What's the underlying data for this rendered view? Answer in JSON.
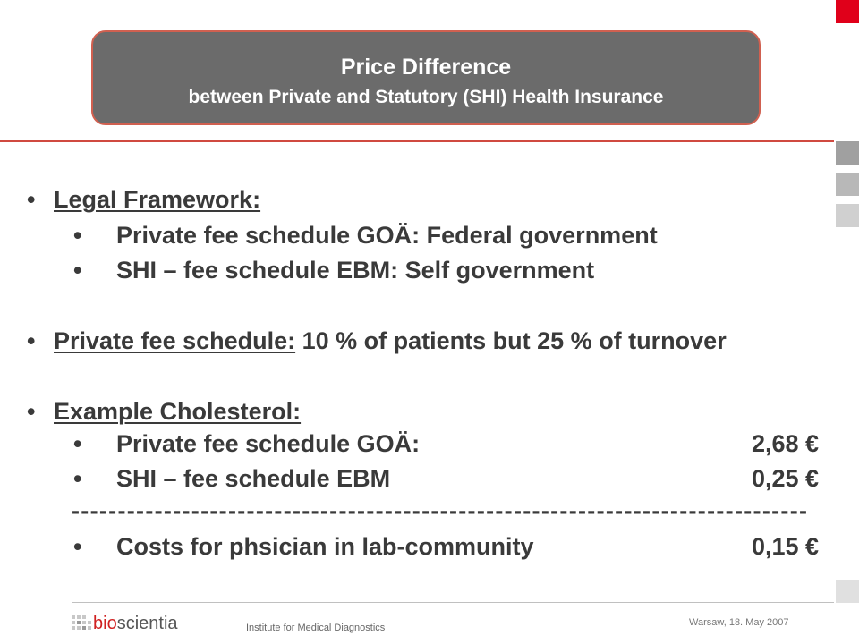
{
  "header": {
    "title": "Price Difference",
    "subtitle": "between Private and Statutory (SHI) Health Insurance"
  },
  "content": {
    "legal_heading": "Legal Framework:",
    "legal_items": [
      "Private fee schedule GOÄ: Federal government",
      "SHI – fee schedule EBM: Self government"
    ],
    "private_heading": "Private fee schedule:",
    "private_text": " 10 % of patients but 25 % of turnover",
    "example_heading": "Example Cholesterol:",
    "example_items": [
      {
        "label": "Private fee schedule GOÄ:",
        "amount": "2,68 €"
      },
      {
        "label": "SHI – fee schedule EBM",
        "amount": "0,25 €"
      }
    ],
    "separator": "--------------------------------------------------------------------------------",
    "cost_item": {
      "label": "Costs for phsician in lab-community",
      "amount": "0,15 €"
    },
    "bullet": "•"
  },
  "footer": {
    "logo_prefix": "bio",
    "logo_suffix": "scientia",
    "institute": "Institute for Medical Diagnostics",
    "date": "Warsaw, 18. May 2007"
  },
  "colors": {
    "accent_red": "#e0001a",
    "title_box": "#6b6b6b"
  }
}
